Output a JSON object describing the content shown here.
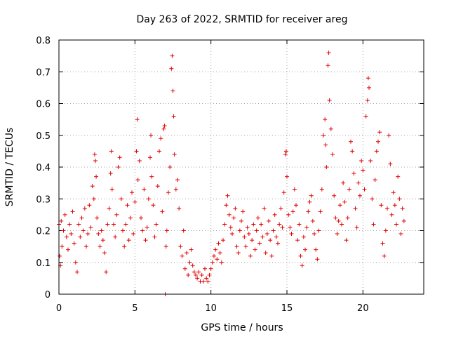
{
  "chart_data": {
    "type": "scatter",
    "title": "Day 263 of 2022, SRMTID for receiver areg",
    "xlabel": "GPS time / hours",
    "ylabel": "SRMTID / TECUs",
    "xlim": [
      0,
      24
    ],
    "ylim": [
      0,
      0.8
    ],
    "xticks": [
      0,
      5,
      10,
      15,
      20
    ],
    "xtick_labels": [
      "0",
      "5",
      "10",
      "15",
      "20"
    ],
    "yticks": [
      0,
      0.1,
      0.2,
      0.3,
      0.4,
      0.5,
      0.6,
      0.7,
      0.8
    ],
    "ytick_labels": [
      "0",
      "0.1",
      "0.2",
      "0.3",
      "0.4",
      "0.5",
      "0.6",
      "0.7",
      "0.8"
    ],
    "grid": true,
    "marker": "+",
    "series_color": "#e00000",
    "series": [
      {
        "name": "SRMTID",
        "points": [
          [
            0.0,
            0.22
          ],
          [
            0.05,
            0.12
          ],
          [
            0.1,
            0.09
          ],
          [
            0.15,
            0.23
          ],
          [
            0.2,
            0.15
          ],
          [
            0.3,
            0.2
          ],
          [
            0.4,
            0.25
          ],
          [
            0.5,
            0.18
          ],
          [
            0.6,
            0.14
          ],
          [
            0.7,
            0.22
          ],
          [
            0.8,
            0.19
          ],
          [
            0.9,
            0.26
          ],
          [
            1.0,
            0.16
          ],
          [
            1.1,
            0.1
          ],
          [
            1.2,
            0.07
          ],
          [
            1.3,
            0.22
          ],
          [
            1.4,
            0.18
          ],
          [
            1.5,
            0.24
          ],
          [
            1.6,
            0.2
          ],
          [
            1.7,
            0.27
          ],
          [
            1.8,
            0.15
          ],
          [
            1.9,
            0.19
          ],
          [
            2.0,
            0.28
          ],
          [
            2.1,
            0.21
          ],
          [
            2.2,
            0.34
          ],
          [
            2.3,
            0.3
          ],
          [
            2.35,
            0.44
          ],
          [
            2.4,
            0.42
          ],
          [
            2.45,
            0.37
          ],
          [
            2.5,
            0.24
          ],
          [
            2.6,
            0.19
          ],
          [
            2.7,
            0.15
          ],
          [
            2.8,
            0.2
          ],
          [
            2.9,
            0.17
          ],
          [
            3.0,
            0.13
          ],
          [
            3.1,
            0.07
          ],
          [
            3.2,
            0.22
          ],
          [
            3.3,
            0.27
          ],
          [
            3.4,
            0.38
          ],
          [
            3.45,
            0.45
          ],
          [
            3.5,
            0.33
          ],
          [
            3.6,
            0.22
          ],
          [
            3.7,
            0.18
          ],
          [
            3.8,
            0.25
          ],
          [
            3.9,
            0.4
          ],
          [
            4.0,
            0.43
          ],
          [
            4.1,
            0.3
          ],
          [
            4.2,
            0.2
          ],
          [
            4.3,
            0.15
          ],
          [
            4.4,
            0.22
          ],
          [
            4.5,
            0.28
          ],
          [
            4.6,
            0.17
          ],
          [
            4.7,
            0.24
          ],
          [
            4.8,
            0.32
          ],
          [
            4.9,
            0.19
          ],
          [
            5.0,
            0.29
          ],
          [
            5.1,
            0.45
          ],
          [
            5.15,
            0.55
          ],
          [
            5.2,
            0.36
          ],
          [
            5.3,
            0.42
          ],
          [
            5.4,
            0.24
          ],
          [
            5.5,
            0.2
          ],
          [
            5.6,
            0.33
          ],
          [
            5.7,
            0.17
          ],
          [
            5.8,
            0.21
          ],
          [
            5.9,
            0.3
          ],
          [
            6.0,
            0.43
          ],
          [
            6.05,
            0.5
          ],
          [
            6.1,
            0.37
          ],
          [
            6.2,
            0.28
          ],
          [
            6.3,
            0.18
          ],
          [
            6.4,
            0.22
          ],
          [
            6.5,
            0.34
          ],
          [
            6.6,
            0.45
          ],
          [
            6.7,
            0.49
          ],
          [
            6.8,
            0.26
          ],
          [
            6.9,
            0.52
          ],
          [
            6.95,
            0.53
          ],
          [
            7.0,
            0.0
          ],
          [
            7.05,
            0.15
          ],
          [
            7.1,
            0.2
          ],
          [
            7.2,
            0.32
          ],
          [
            7.3,
            0.4
          ],
          [
            7.4,
            0.71
          ],
          [
            7.45,
            0.75
          ],
          [
            7.5,
            0.64
          ],
          [
            7.55,
            0.56
          ],
          [
            7.6,
            0.44
          ],
          [
            7.7,
            0.33
          ],
          [
            7.8,
            0.36
          ],
          [
            7.9,
            0.27
          ],
          [
            8.0,
            0.15
          ],
          [
            8.1,
            0.12
          ],
          [
            8.2,
            0.2
          ],
          [
            8.3,
            0.08
          ],
          [
            8.4,
            0.13
          ],
          [
            8.5,
            0.06
          ],
          [
            8.6,
            0.1
          ],
          [
            8.7,
            0.14
          ],
          [
            8.8,
            0.09
          ],
          [
            8.9,
            0.07
          ],
          [
            9.0,
            0.06
          ],
          [
            9.1,
            0.05
          ],
          [
            9.2,
            0.07
          ],
          [
            9.3,
            0.04
          ],
          [
            9.4,
            0.06
          ],
          [
            9.5,
            0.04
          ],
          [
            9.6,
            0.08
          ],
          [
            9.7,
            0.05
          ],
          [
            9.8,
            0.04
          ],
          [
            9.9,
            0.06
          ],
          [
            10.0,
            0.08
          ],
          [
            10.1,
            0.1
          ],
          [
            10.2,
            0.12
          ],
          [
            10.3,
            0.14
          ],
          [
            10.4,
            0.11
          ],
          [
            10.5,
            0.16
          ],
          [
            10.6,
            0.13
          ],
          [
            10.7,
            0.1
          ],
          [
            10.8,
            0.17
          ],
          [
            10.9,
            0.22
          ],
          [
            11.0,
            0.28
          ],
          [
            11.1,
            0.31
          ],
          [
            11.2,
            0.25
          ],
          [
            11.3,
            0.21
          ],
          [
            11.4,
            0.19
          ],
          [
            11.5,
            0.24
          ],
          [
            11.6,
            0.27
          ],
          [
            11.7,
            0.15
          ],
          [
            11.8,
            0.13
          ],
          [
            11.9,
            0.2
          ],
          [
            12.0,
            0.23
          ],
          [
            12.1,
            0.26
          ],
          [
            12.2,
            0.18
          ],
          [
            12.3,
            0.15
          ],
          [
            12.4,
            0.21
          ],
          [
            12.5,
            0.19
          ],
          [
            12.6,
            0.12
          ],
          [
            12.7,
            0.17
          ],
          [
            12.8,
            0.22
          ],
          [
            12.9,
            0.14
          ],
          [
            13.0,
            0.2
          ],
          [
            13.1,
            0.24
          ],
          [
            13.2,
            0.16
          ],
          [
            13.3,
            0.22
          ],
          [
            13.4,
            0.18
          ],
          [
            13.5,
            0.27
          ],
          [
            13.6,
            0.13
          ],
          [
            13.7,
            0.19
          ],
          [
            13.8,
            0.23
          ],
          [
            13.9,
            0.17
          ],
          [
            14.0,
            0.12
          ],
          [
            14.1,
            0.2
          ],
          [
            14.2,
            0.25
          ],
          [
            14.3,
            0.18
          ],
          [
            14.4,
            0.16
          ],
          [
            14.5,
            0.22
          ],
          [
            14.6,
            0.27
          ],
          [
            14.7,
            0.21
          ],
          [
            14.8,
            0.32
          ],
          [
            14.9,
            0.44
          ],
          [
            14.95,
            0.45
          ],
          [
            15.0,
            0.37
          ],
          [
            15.1,
            0.25
          ],
          [
            15.2,
            0.21
          ],
          [
            15.3,
            0.19
          ],
          [
            15.4,
            0.26
          ],
          [
            15.5,
            0.33
          ],
          [
            15.6,
            0.28
          ],
          [
            15.7,
            0.17
          ],
          [
            15.8,
            0.22
          ],
          [
            15.9,
            0.12
          ],
          [
            16.0,
            0.09
          ],
          [
            16.1,
            0.18
          ],
          [
            16.2,
            0.14
          ],
          [
            16.3,
            0.21
          ],
          [
            16.4,
            0.26
          ],
          [
            16.5,
            0.29
          ],
          [
            16.6,
            0.31
          ],
          [
            16.7,
            0.23
          ],
          [
            16.8,
            0.19
          ],
          [
            16.9,
            0.14
          ],
          [
            17.0,
            0.11
          ],
          [
            17.1,
            0.2
          ],
          [
            17.2,
            0.26
          ],
          [
            17.3,
            0.33
          ],
          [
            17.4,
            0.5
          ],
          [
            17.5,
            0.55
          ],
          [
            17.55,
            0.47
          ],
          [
            17.6,
            0.4
          ],
          [
            17.7,
            0.72
          ],
          [
            17.75,
            0.76
          ],
          [
            17.8,
            0.61
          ],
          [
            17.9,
            0.52
          ],
          [
            18.0,
            0.44
          ],
          [
            18.1,
            0.31
          ],
          [
            18.2,
            0.24
          ],
          [
            18.3,
            0.19
          ],
          [
            18.4,
            0.23
          ],
          [
            18.5,
            0.28
          ],
          [
            18.6,
            0.22
          ],
          [
            18.7,
            0.35
          ],
          [
            18.8,
            0.29
          ],
          [
            18.9,
            0.17
          ],
          [
            19.0,
            0.24
          ],
          [
            19.1,
            0.33
          ],
          [
            19.2,
            0.48
          ],
          [
            19.3,
            0.45
          ],
          [
            19.4,
            0.38
          ],
          [
            19.5,
            0.27
          ],
          [
            19.6,
            0.21
          ],
          [
            19.7,
            0.35
          ],
          [
            19.8,
            0.31
          ],
          [
            19.9,
            0.42
          ],
          [
            20.0,
            0.39
          ],
          [
            20.1,
            0.33
          ],
          [
            20.2,
            0.56
          ],
          [
            20.3,
            0.61
          ],
          [
            20.35,
            0.68
          ],
          [
            20.4,
            0.65
          ],
          [
            20.5,
            0.42
          ],
          [
            20.6,
            0.3
          ],
          [
            20.7,
            0.22
          ],
          [
            20.8,
            0.36
          ],
          [
            20.9,
            0.45
          ],
          [
            21.0,
            0.48
          ],
          [
            21.1,
            0.51
          ],
          [
            21.2,
            0.28
          ],
          [
            21.3,
            0.16
          ],
          [
            21.4,
            0.12
          ],
          [
            21.5,
            0.2
          ],
          [
            21.6,
            0.27
          ],
          [
            21.7,
            0.5
          ],
          [
            21.8,
            0.41
          ],
          [
            21.9,
            0.25
          ],
          [
            22.0,
            0.32
          ],
          [
            22.1,
            0.28
          ],
          [
            22.2,
            0.22
          ],
          [
            22.3,
            0.37
          ],
          [
            22.4,
            0.3
          ],
          [
            22.5,
            0.19
          ],
          [
            22.6,
            0.27
          ],
          [
            22.7,
            0.23
          ]
        ]
      }
    ]
  }
}
